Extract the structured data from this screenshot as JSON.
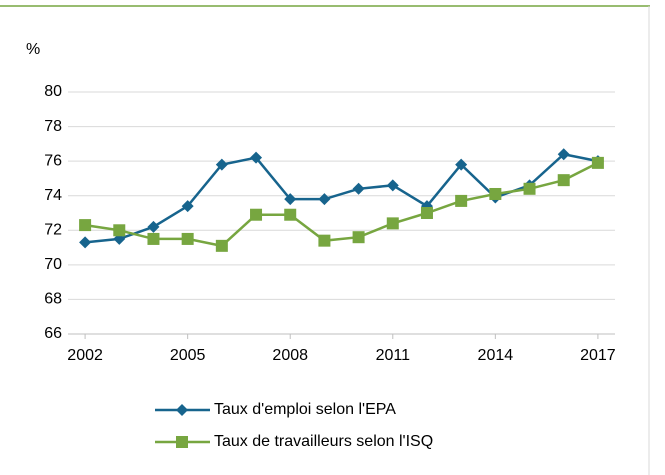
{
  "chart_data": {
    "type": "line",
    "y_label": "%",
    "x": [
      2002,
      2003,
      2004,
      2005,
      2006,
      2007,
      2008,
      2009,
      2010,
      2011,
      2012,
      2013,
      2014,
      2015,
      2016,
      2017
    ],
    "xlim": [
      2001.5,
      2017.5
    ],
    "xticks": [
      2002,
      2005,
      2008,
      2011,
      2014,
      2017
    ],
    "ylim": [
      66,
      80
    ],
    "yticks": [
      66,
      68,
      70,
      72,
      74,
      76,
      78,
      80
    ],
    "grid": true,
    "legend": "bottom",
    "series": [
      {
        "name": "Taux d'emploi selon l'EPA",
        "color": "#17648d",
        "marker": "diamond",
        "values": [
          71.3,
          71.5,
          72.2,
          73.4,
          75.8,
          76.2,
          73.8,
          73.8,
          74.4,
          74.6,
          73.4,
          75.8,
          73.9,
          74.6,
          76.4,
          76.0
        ]
      },
      {
        "name": "Taux de travailleurs selon l'ISQ",
        "color": "#77a640",
        "marker": "square",
        "values": [
          72.3,
          72.0,
          71.5,
          71.5,
          71.1,
          72.9,
          72.9,
          71.4,
          71.6,
          72.4,
          73.0,
          73.7,
          74.1,
          74.4,
          74.9,
          75.9
        ]
      }
    ]
  }
}
